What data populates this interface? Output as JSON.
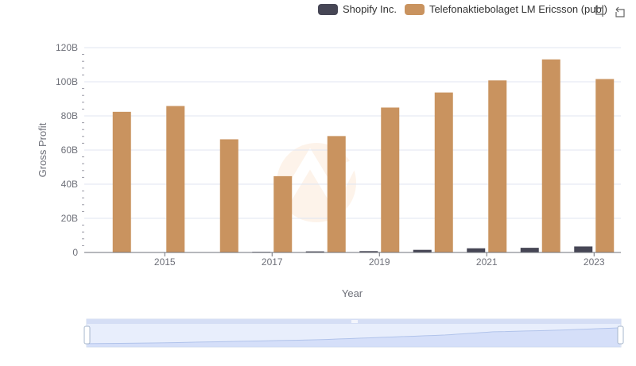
{
  "chart_data": {
    "type": "bar",
    "title": "",
    "xlabel": "Year",
    "ylabel": "Gross Profit",
    "categories": [
      "2014",
      "2015",
      "2016",
      "2017",
      "2018",
      "2019",
      "2020",
      "2021",
      "2022",
      "2023"
    ],
    "x_tick_labels": [
      "2015",
      "2017",
      "2019",
      "2021",
      "2023"
    ],
    "y_tick_labels": [
      "0",
      "20B",
      "40B",
      "60B",
      "80B",
      "100B",
      "120B"
    ],
    "ylim": [
      0,
      120
    ],
    "y_unit": "billions",
    "series": [
      {
        "name": "Shopify Inc.",
        "color": "#464655",
        "values": [
          0.06,
          0.11,
          0.21,
          0.38,
          0.64,
          0.79,
          1.54,
          2.44,
          2.74,
          3.52
        ]
      },
      {
        "name": "Telefonaktiebolaget LM Ericsson (publ)",
        "color": "#c9935f",
        "values": [
          82.4,
          85.8,
          66.3,
          44.7,
          68.2,
          84.9,
          93.7,
          100.8,
          113.1,
          101.6
        ]
      }
    ],
    "legend_position": "top-right",
    "grid": true
  },
  "legend": [
    {
      "label": "Shopify Inc.",
      "color": "#464655"
    },
    {
      "label": "Telefonaktiebolaget LM Ericsson (publ)",
      "color": "#c9935f"
    }
  ],
  "toolbox": {
    "icons": [
      "zoom-icon",
      "restore-icon"
    ]
  },
  "slider": {
    "range_start_percent": 0,
    "range_end_percent": 100
  }
}
